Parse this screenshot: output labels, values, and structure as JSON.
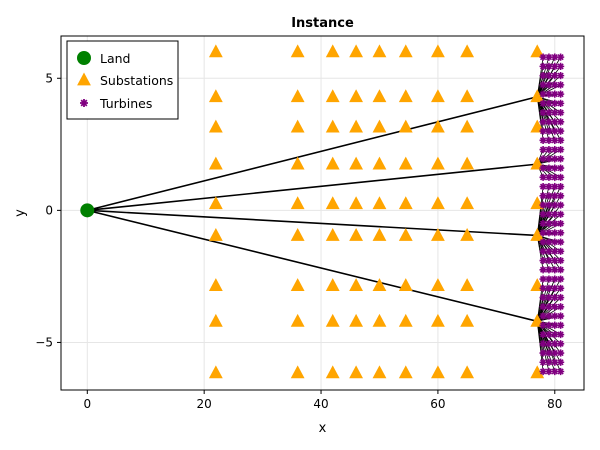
{
  "chart_data": {
    "type": "scatter",
    "title": "Instance",
    "xlabel": "x",
    "ylabel": "y",
    "xlim": [
      -4.5,
      85
    ],
    "ylim": [
      -6.8,
      6.6
    ],
    "x_ticks": [
      0,
      20,
      40,
      60,
      80
    ],
    "y_ticks": [
      -5,
      0,
      5
    ],
    "x_tick_labels": [
      "0",
      "20",
      "40",
      "60",
      "80"
    ],
    "y_tick_labels": [
      "−5",
      "0",
      "5"
    ],
    "grid": true,
    "legend": {
      "position": "top-left",
      "entries": [
        "Land",
        "Substations",
        "Turbines"
      ]
    },
    "colors": {
      "land": "#008000",
      "substations": "#FFA500",
      "turbines": "#800080",
      "cables": "#000000",
      "grid": "#e6e6e6"
    },
    "land": {
      "name": "Land",
      "x": 0,
      "y": 0
    },
    "substations": {
      "name": "Substations",
      "x": [
        22,
        36,
        42,
        46,
        50,
        54.5,
        60,
        65,
        77
      ],
      "y": [
        6,
        4.3,
        3.15,
        1.75,
        0.25,
        -0.95,
        -2.85,
        -4.2,
        -6.15
      ]
    },
    "turbines": {
      "name": "Turbines",
      "x": [
        78,
        79,
        80,
        81
      ],
      "y_start": -6.1,
      "y_step": 0.35,
      "count_per_column": 35
    },
    "cables": [
      {
        "from": [
          0,
          0
        ],
        "to": [
          77,
          4.3
        ]
      },
      {
        "from": [
          0,
          0
        ],
        "to": [
          77,
          1.75
        ]
      },
      {
        "from": [
          0,
          0
        ],
        "to": [
          77,
          -0.95
        ]
      },
      {
        "from": [
          0,
          0
        ],
        "to": [
          77,
          -4.2
        ]
      }
    ],
    "hubs": [
      {
        "x": 77,
        "y": 4.3,
        "y_from": 2.5,
        "y_to": 6.0
      },
      {
        "x": 77,
        "y": 1.75,
        "y_from": 1.2,
        "y_to": 2.4
      },
      {
        "x": 77,
        "y": -0.95,
        "y_from": -2.5,
        "y_to": 1.1
      },
      {
        "x": 77,
        "y": -4.2,
        "y_from": -6.1,
        "y_to": -2.6
      }
    ]
  }
}
